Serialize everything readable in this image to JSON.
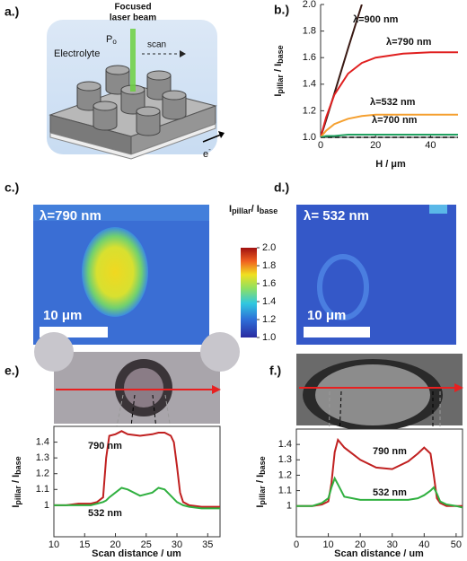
{
  "panels": {
    "a": {
      "label": "a.)",
      "beam": [
        "Focused",
        "laser beam"
      ],
      "power": "P",
      "power_sub": "o",
      "scan": "scan",
      "electrolyte": "Electrolyte",
      "electron": "e",
      "electron_sup": "-"
    },
    "b": {
      "label": "b.)"
    },
    "c": {
      "label": "c.)",
      "wavelength": "λ=790 nm",
      "scale_bar": "10 μm"
    },
    "d": {
      "label": "d.)",
      "wavelength": "λ= 532 nm",
      "scale_bar": "10 μm"
    },
    "e": {
      "label": "e.)"
    },
    "f": {
      "label": "f.)"
    }
  },
  "chart_data": [
    {
      "type": "line",
      "xlabel": "H / μm",
      "ylabel": [
        "I",
        "pillar",
        " / I",
        "base"
      ],
      "x": [
        0,
        2,
        5,
        10,
        15,
        20,
        30,
        40,
        50
      ],
      "series": [
        {
          "name": "λ=900 nm",
          "color": "#3a1a14",
          "values": [
            1.0,
            1.13,
            1.33,
            1.67,
            2.0,
            null,
            null,
            null,
            null
          ]
        },
        {
          "name": "λ=790 nm",
          "color": "#e02020",
          "values": [
            1.0,
            1.15,
            1.32,
            1.48,
            1.56,
            1.6,
            1.63,
            1.64,
            1.64
          ]
        },
        {
          "name": "λ=700 nm",
          "color": "#f5a030",
          "values": [
            1.0,
            1.05,
            1.1,
            1.14,
            1.16,
            1.17,
            1.17,
            1.17,
            1.17
          ]
        },
        {
          "name": "λ=532 nm",
          "color": "#20a060",
          "values": [
            1.0,
            1.01,
            1.01,
            1.02,
            1.02,
            1.02,
            1.02,
            1.02,
            1.02
          ]
        }
      ],
      "baseline": 1.0,
      "xlim": [
        0,
        50
      ],
      "xticks": [
        0,
        20,
        40
      ],
      "ylim": [
        1.0,
        2.0
      ],
      "yticks": [
        {
          "value": 1,
          "label": "1.0"
        },
        {
          "value": 1.2,
          "label": "1.2"
        },
        {
          "value": 1.4,
          "label": "1.4"
        },
        {
          "value": 1.6,
          "label": "1.6"
        },
        {
          "value": 1.8,
          "label": "1.8"
        },
        {
          "value": 2,
          "label": "2.0"
        }
      ]
    },
    {
      "type": "colorbar",
      "label": [
        "I",
        "pillar",
        "/ I",
        "base"
      ],
      "ylim": [
        1.0,
        2.0
      ],
      "yticks": [
        {
          "value": 1,
          "label": "1.0"
        },
        {
          "value": 1.2,
          "label": "1.2"
        },
        {
          "value": 1.4,
          "label": "1.4"
        },
        {
          "value": 1.6,
          "label": "1.6"
        },
        {
          "value": 1.8,
          "label": "1.8"
        },
        {
          "value": 2,
          "label": "2.0"
        }
      ]
    },
    {
      "type": "line",
      "xlabel": "Scan distance / um",
      "ylabel": [
        "I",
        "pillar",
        " / I",
        "base"
      ],
      "x": [
        10,
        12,
        14,
        16,
        17,
        18,
        18.5,
        19,
        20,
        21,
        22,
        24,
        26,
        27,
        28,
        29,
        29.5,
        30,
        30.5,
        31,
        32,
        34,
        36,
        37
      ],
      "series": [
        {
          "name": "790 nm",
          "color": "#c02020",
          "values": [
            1.0,
            1.0,
            1.01,
            1.01,
            1.02,
            1.05,
            1.3,
            1.44,
            1.45,
            1.47,
            1.45,
            1.44,
            1.45,
            1.46,
            1.46,
            1.44,
            1.4,
            1.25,
            1.08,
            1.02,
            1.0,
            0.99,
            0.99,
            0.99
          ]
        },
        {
          "name": "532 nm",
          "color": "#30b040",
          "values": [
            1.0,
            1.0,
            1.0,
            1.0,
            1.01,
            1.02,
            1.03,
            1.05,
            1.08,
            1.11,
            1.1,
            1.06,
            1.08,
            1.11,
            1.1,
            1.06,
            1.04,
            1.02,
            1.01,
            1.0,
            0.99,
            0.98,
            0.98,
            0.98
          ]
        }
      ],
      "xlim": [
        10,
        37
      ],
      "xticks": [
        10,
        15,
        20,
        25,
        30,
        35
      ],
      "ylim": [
        0.8,
        1.5
      ],
      "yticks": [
        1,
        1.1,
        1.2,
        1.3,
        1.4
      ]
    },
    {
      "type": "line",
      "xlabel": "Scan distance / um",
      "ylabel": [
        "I",
        "pillar",
        " / I",
        "base"
      ],
      "x": [
        0,
        5,
        8,
        10,
        11,
        12,
        13,
        15,
        20,
        25,
        30,
        35,
        38,
        40,
        42,
        43,
        44,
        45,
        47,
        50,
        52
      ],
      "series": [
        {
          "name": "790 nm",
          "color": "#c02020",
          "values": [
            1.0,
            1.0,
            1.01,
            1.03,
            1.15,
            1.35,
            1.43,
            1.38,
            1.3,
            1.25,
            1.24,
            1.29,
            1.34,
            1.38,
            1.34,
            1.2,
            1.05,
            1.02,
            1.0,
            1.0,
            1.0
          ]
        },
        {
          "name": "532 nm",
          "color": "#30b040",
          "values": [
            1.0,
            1.0,
            1.02,
            1.05,
            1.12,
            1.18,
            1.14,
            1.06,
            1.04,
            1.04,
            1.04,
            1.04,
            1.05,
            1.07,
            1.1,
            1.12,
            1.08,
            1.03,
            1.01,
            1.0,
            0.99
          ]
        }
      ],
      "xlim": [
        0,
        52
      ],
      "xticks": [
        0,
        10,
        20,
        30,
        40,
        50
      ],
      "ylim": [
        0.8,
        1.5
      ],
      "yticks": [
        1,
        1.1,
        1.2,
        1.3,
        1.4
      ]
    }
  ]
}
